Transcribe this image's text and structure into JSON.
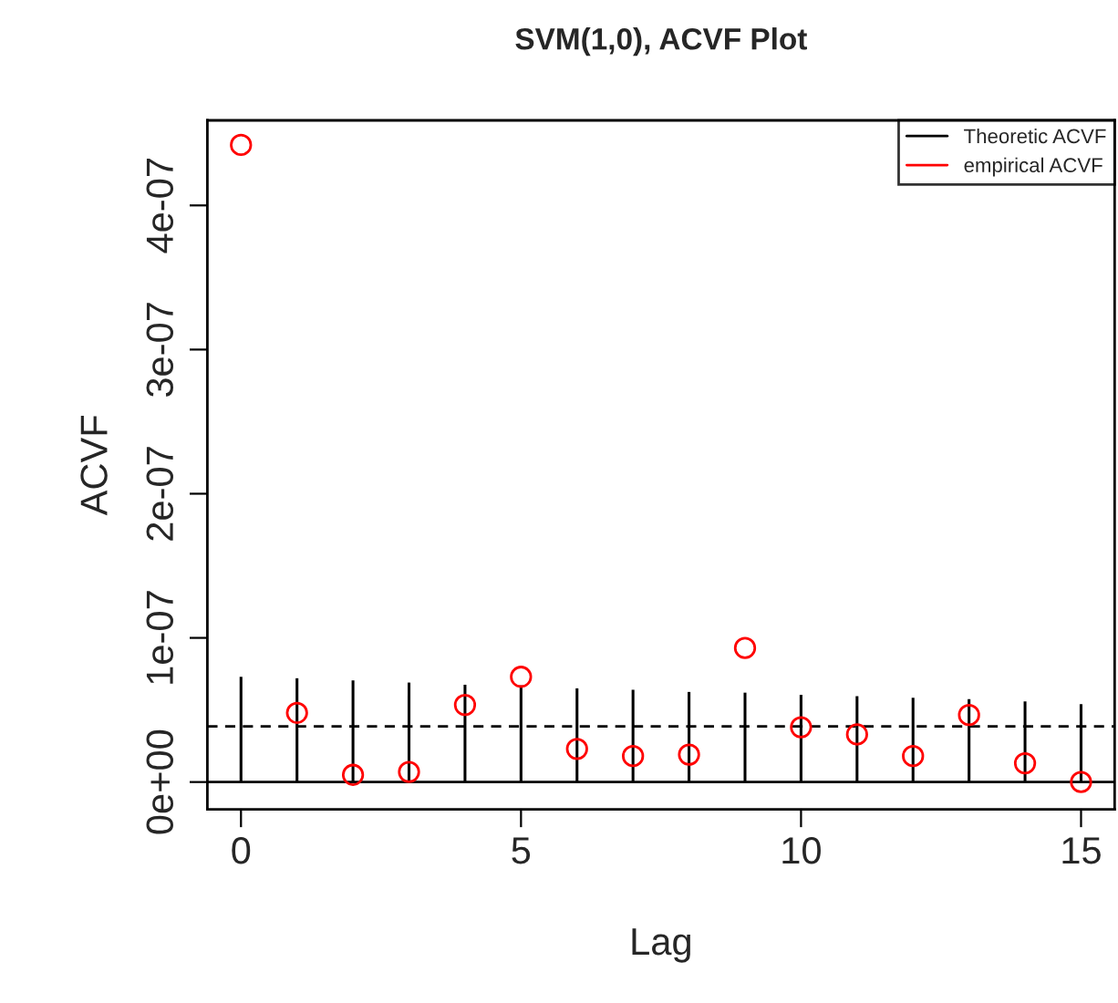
{
  "chart_data": {
    "type": "scatter",
    "title": "SVM(1,0), ACVF Plot",
    "xlabel": "Lag",
    "ylabel": "ACVF",
    "x": [
      0,
      1,
      2,
      3,
      4,
      5,
      6,
      7,
      8,
      9,
      10,
      11,
      12,
      13,
      14,
      15
    ],
    "series": [
      {
        "name": "Theoretic ACVF",
        "type": "bar",
        "color": "#000000",
        "values": [
          7.3e-08,
          7.2e-08,
          7.05e-08,
          6.9e-08,
          6.75e-08,
          6.7e-08,
          6.5e-08,
          6.4e-08,
          6.25e-08,
          6.2e-08,
          6.05e-08,
          5.95e-08,
          5.85e-08,
          5.75e-08,
          5.6e-08,
          5.4e-08
        ]
      },
      {
        "name": "empirical ACVF",
        "marker": "circle",
        "color": "#ff0000",
        "values": [
          4.42e-07,
          4.8e-08,
          5e-09,
          7e-09,
          5.35e-08,
          7.3e-08,
          2.3e-08,
          1.8e-08,
          1.9e-08,
          9.3e-08,
          3.8e-08,
          3.3e-08,
          1.8e-08,
          4.65e-08,
          1.3e-08,
          0
        ]
      }
    ],
    "ref_lines": [
      {
        "axis": "y",
        "value": 0,
        "color": "#000000",
        "line_style": "solid"
      },
      {
        "axis": "y",
        "value": 3.86e-08,
        "color": "#000000",
        "line_style": "dashed"
      }
    ],
    "xlim": [
      -0.6,
      15.6
    ],
    "ylim": [
      -1.9e-08,
      4.59e-07
    ],
    "xticks": [
      0,
      5,
      10,
      15
    ],
    "yticks": [
      {
        "value": 0,
        "label": "0e+00"
      },
      {
        "value": 1e-07,
        "label": "1e-07"
      },
      {
        "value": 2e-07,
        "label": "2e-07"
      },
      {
        "value": 3e-07,
        "label": "3e-07"
      },
      {
        "value": 4e-07,
        "label": "4e-07"
      }
    ],
    "legend": "top right",
    "grid": false
  }
}
